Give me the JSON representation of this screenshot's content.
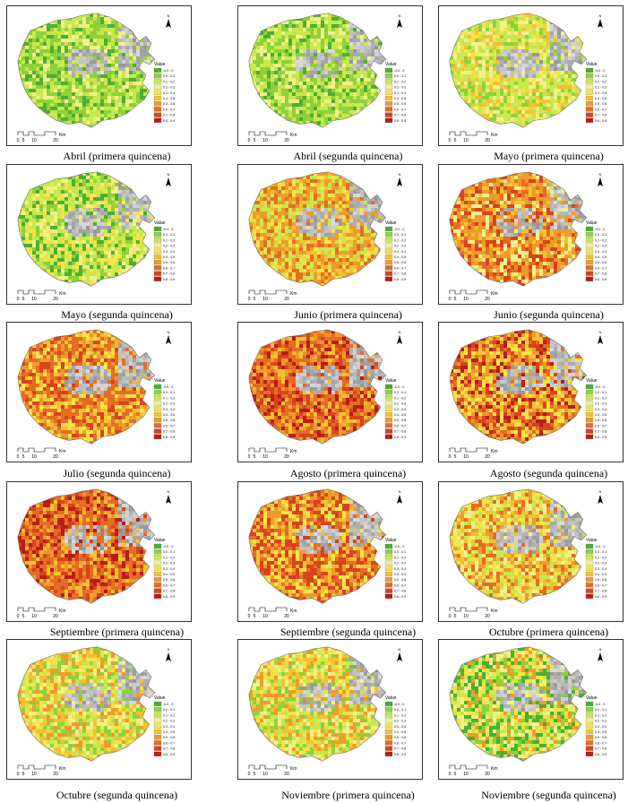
{
  "legend": {
    "title": "Value",
    "classes": [
      "-0.0 - 0",
      "0.0 - 0.1",
      "0.1 - 0.2",
      "0.2 - 0.3",
      "0.3 - 0.4",
      "0.4 - 0.5",
      "0.5 - 0.6",
      "0.6 - 0.7",
      "0.7 - 0.8",
      "0.8 - 0.9"
    ],
    "colors": [
      "#4caf33",
      "#8fd13a",
      "#c8e84e",
      "#f1f08a",
      "#f4e34a",
      "#f2c232",
      "#ef9b2b",
      "#e56d23",
      "#d8431e",
      "#b81d16"
    ]
  },
  "scale_bar": {
    "labels": [
      "0",
      "5",
      "10",
      "20"
    ],
    "unit": "Km"
  },
  "north": {
    "label": "N"
  },
  "panels": [
    {
      "caption": "Abril (primera quincena)",
      "palette": [
        0,
        1,
        1,
        2,
        2,
        3
      ]
    },
    {
      "caption": "Abril (segunda quincena)",
      "palette": [
        0,
        1,
        1,
        2,
        2,
        3
      ]
    },
    {
      "caption": "Mayo (primera quincena)",
      "palette": [
        1,
        2,
        2,
        3,
        4,
        5
      ]
    },
    {
      "caption": "Mayo (segunda quincena)",
      "palette": [
        0,
        1,
        2,
        2,
        3,
        4
      ]
    },
    {
      "caption": "Junio (primera quincena)",
      "palette": [
        2,
        4,
        5,
        6,
        6,
        7
      ]
    },
    {
      "caption": "Junio (segunda quincena)",
      "palette": [
        3,
        5,
        6,
        6,
        7,
        8
      ]
    },
    {
      "caption": "Julio (segunda quincena)",
      "palette": [
        4,
        5,
        6,
        7,
        7,
        8
      ]
    },
    {
      "caption": "Agosto (primera quincena)",
      "palette": [
        5,
        6,
        7,
        7,
        8,
        9
      ]
    },
    {
      "caption": "Agosto (segunda quincena)",
      "palette": [
        4,
        5,
        6,
        7,
        8,
        9
      ]
    },
    {
      "caption": "Septiembre (primera quincena)",
      "palette": [
        5,
        6,
        7,
        7,
        8,
        9
      ]
    },
    {
      "caption": "Septiembre (segunda quincena)",
      "palette": [
        4,
        5,
        6,
        7,
        8,
        8
      ]
    },
    {
      "caption": "Octubre (primera quincena)",
      "palette": [
        2,
        3,
        4,
        5,
        6,
        7
      ]
    },
    {
      "caption": "Octubre (segunda quincena)",
      "palette": [
        1,
        2,
        3,
        4,
        5,
        6
      ]
    },
    {
      "caption": "Noviembre (primera quincena)",
      "palette": [
        1,
        2,
        3,
        4,
        5,
        6
      ]
    },
    {
      "caption": "Noviembre (segunda quincena)",
      "palette": [
        0,
        1,
        2,
        3,
        4,
        6
      ]
    }
  ]
}
